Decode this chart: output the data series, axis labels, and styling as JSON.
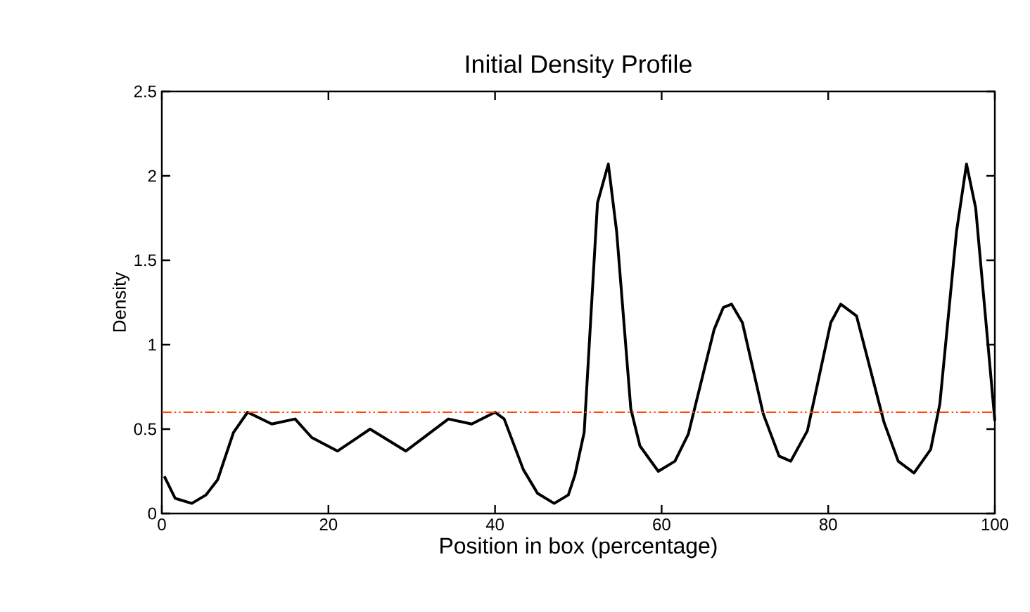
{
  "chart_data": {
    "type": "line",
    "title": "Initial Density Profile",
    "xlabel": "Position in box (percentage)",
    "ylabel": "Density",
    "x": [
      0.3,
      1.6,
      3.6,
      5.3,
      6.7,
      8.6,
      10.3,
      13.2,
      16.0,
      18.0,
      21.1,
      25.0,
      29.3,
      34.4,
      37.2,
      40.0,
      41.1,
      43.4,
      45.1,
      47.1,
      48.8,
      49.6,
      50.7,
      52.3,
      53.6,
      54.6,
      56.3,
      57.4,
      59.6,
      61.6,
      63.2,
      66.3,
      67.4,
      68.4,
      69.7,
      72.2,
      74.1,
      75.5,
      77.5,
      80.3,
      81.5,
      83.4,
      86.7,
      88.4,
      90.3,
      92.3,
      93.4,
      95.4,
      96.6,
      97.7,
      100
    ],
    "series": [
      {
        "color": "#000000",
        "values": [
          0.22,
          0.09,
          0.06,
          0.11,
          0.2,
          0.48,
          0.6,
          0.53,
          0.56,
          0.45,
          0.37,
          0.5,
          0.37,
          0.56,
          0.53,
          0.6,
          0.56,
          0.26,
          0.12,
          0.06,
          0.11,
          0.23,
          0.48,
          1.84,
          2.07,
          1.67,
          0.62,
          0.4,
          0.25,
          0.31,
          0.47,
          1.09,
          1.22,
          1.24,
          1.13,
          0.59,
          0.34,
          0.31,
          0.49,
          1.13,
          1.24,
          1.17,
          0.54,
          0.31,
          0.24,
          0.38,
          0.65,
          1.67,
          2.07,
          1.81,
          0.55
        ]
      }
    ],
    "xlim": [
      0,
      100
    ],
    "ylim": [
      0,
      2.5
    ],
    "xticks": [
      0,
      20,
      40,
      60,
      80,
      100
    ],
    "yticks": [
      0,
      {
        "value": 0.5,
        "label": "0.5"
      },
      1,
      {
        "value": 1.5,
        "label": "1.5"
      },
      2,
      {
        "value": 2.5,
        "label": "2.5"
      }
    ],
    "ref_lines": [
      {
        "axis": "y",
        "value": 0.6,
        "color": "#ff4500",
        "line_style": "dashdotdot"
      }
    ],
    "marker": "none",
    "line_style": "solid"
  }
}
